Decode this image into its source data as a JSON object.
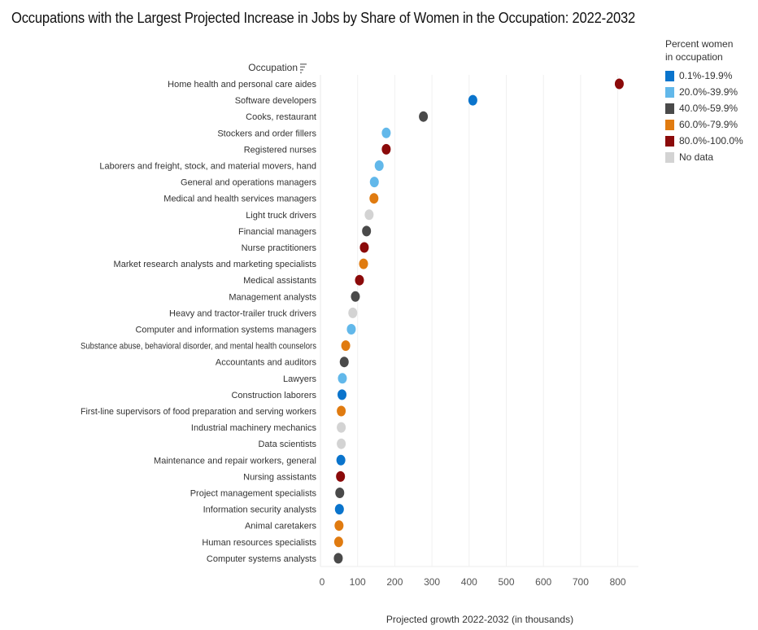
{
  "chart_data": {
    "type": "scatter",
    "title": "Occupations with the Largest Projected Increase in Jobs by Share of Women in the Occupation: 2022-2032",
    "ylabel": "Occupation",
    "xlabel": "Projected growth 2022-2032 (in thousands)",
    "xlim": [
      0,
      850
    ],
    "xticks": [
      0,
      100,
      200,
      300,
      400,
      500,
      600,
      700,
      800
    ],
    "grid": true,
    "legend": {
      "title_line1": "Percent women",
      "title_line2": "in occupation",
      "placement": "right",
      "entries": [
        {
          "key": "a",
          "label": "0.1%-19.9%",
          "color": "#0a74cc"
        },
        {
          "key": "b",
          "label": "20.0%-39.9%",
          "color": "#62b8ea"
        },
        {
          "key": "c",
          "label": "40.0%-59.9%",
          "color": "#4a4a4a"
        },
        {
          "key": "d",
          "label": "60.0%-79.9%",
          "color": "#e07b10"
        },
        {
          "key": "e",
          "label": "80.0%-100.0%",
          "color": "#8b0a0a"
        },
        {
          "key": "f",
          "label": "No data",
          "color": "#d3d3d3"
        }
      ]
    },
    "points": [
      {
        "category": "Home health and personal care aides",
        "value": 804,
        "group": "e"
      },
      {
        "category": "Software developers",
        "value": 410,
        "group": "a"
      },
      {
        "category": "Cooks, restaurant",
        "value": 277,
        "group": "c"
      },
      {
        "category": "Stockers and order fillers",
        "value": 177,
        "group": "b"
      },
      {
        "category": "Registered nurses",
        "value": 177,
        "group": "e"
      },
      {
        "category": "Laborers and freight, stock, and material movers, hand",
        "value": 158,
        "group": "b"
      },
      {
        "category": "General and operations managers",
        "value": 145,
        "group": "b"
      },
      {
        "category": "Medical and health services managers",
        "value": 144,
        "group": "d"
      },
      {
        "category": "Light truck drivers",
        "value": 131,
        "group": "f"
      },
      {
        "category": "Financial managers",
        "value": 124,
        "group": "c"
      },
      {
        "category": "Nurse practitioners",
        "value": 118,
        "group": "e"
      },
      {
        "category": "Market research analysts and marketing specialists",
        "value": 116,
        "group": "d"
      },
      {
        "category": "Medical assistants",
        "value": 105,
        "group": "e"
      },
      {
        "category": "Management analysts",
        "value": 94,
        "group": "c"
      },
      {
        "category": "Heavy and tractor-trailer truck drivers",
        "value": 87,
        "group": "f"
      },
      {
        "category": "Computer and information systems managers",
        "value": 83,
        "group": "b"
      },
      {
        "category": "Substance abuse, behavioral disorder, and mental health counselors",
        "value": 68,
        "group": "d"
      },
      {
        "category": "Accountants and auditors",
        "value": 64,
        "group": "c"
      },
      {
        "category": "Lawyers",
        "value": 59,
        "group": "b"
      },
      {
        "category": "Construction laborers",
        "value": 58,
        "group": "a"
      },
      {
        "category": "First-line supervisors of food preparation and serving workers",
        "value": 56,
        "group": "d"
      },
      {
        "category": "Industrial machinery mechanics",
        "value": 56,
        "group": "f"
      },
      {
        "category": "Data scientists",
        "value": 56,
        "group": "f"
      },
      {
        "category": "Maintenance and repair workers, general",
        "value": 55,
        "group": "a"
      },
      {
        "category": "Nursing assistants",
        "value": 54,
        "group": "e"
      },
      {
        "category": "Project management specialists",
        "value": 52,
        "group": "c"
      },
      {
        "category": "Information security analysts",
        "value": 51,
        "group": "a"
      },
      {
        "category": "Animal caretakers",
        "value": 50,
        "group": "d"
      },
      {
        "category": "Human resources specialists",
        "value": 49,
        "group": "d"
      },
      {
        "category": "Computer systems analysts",
        "value": 48,
        "group": "c"
      }
    ]
  }
}
